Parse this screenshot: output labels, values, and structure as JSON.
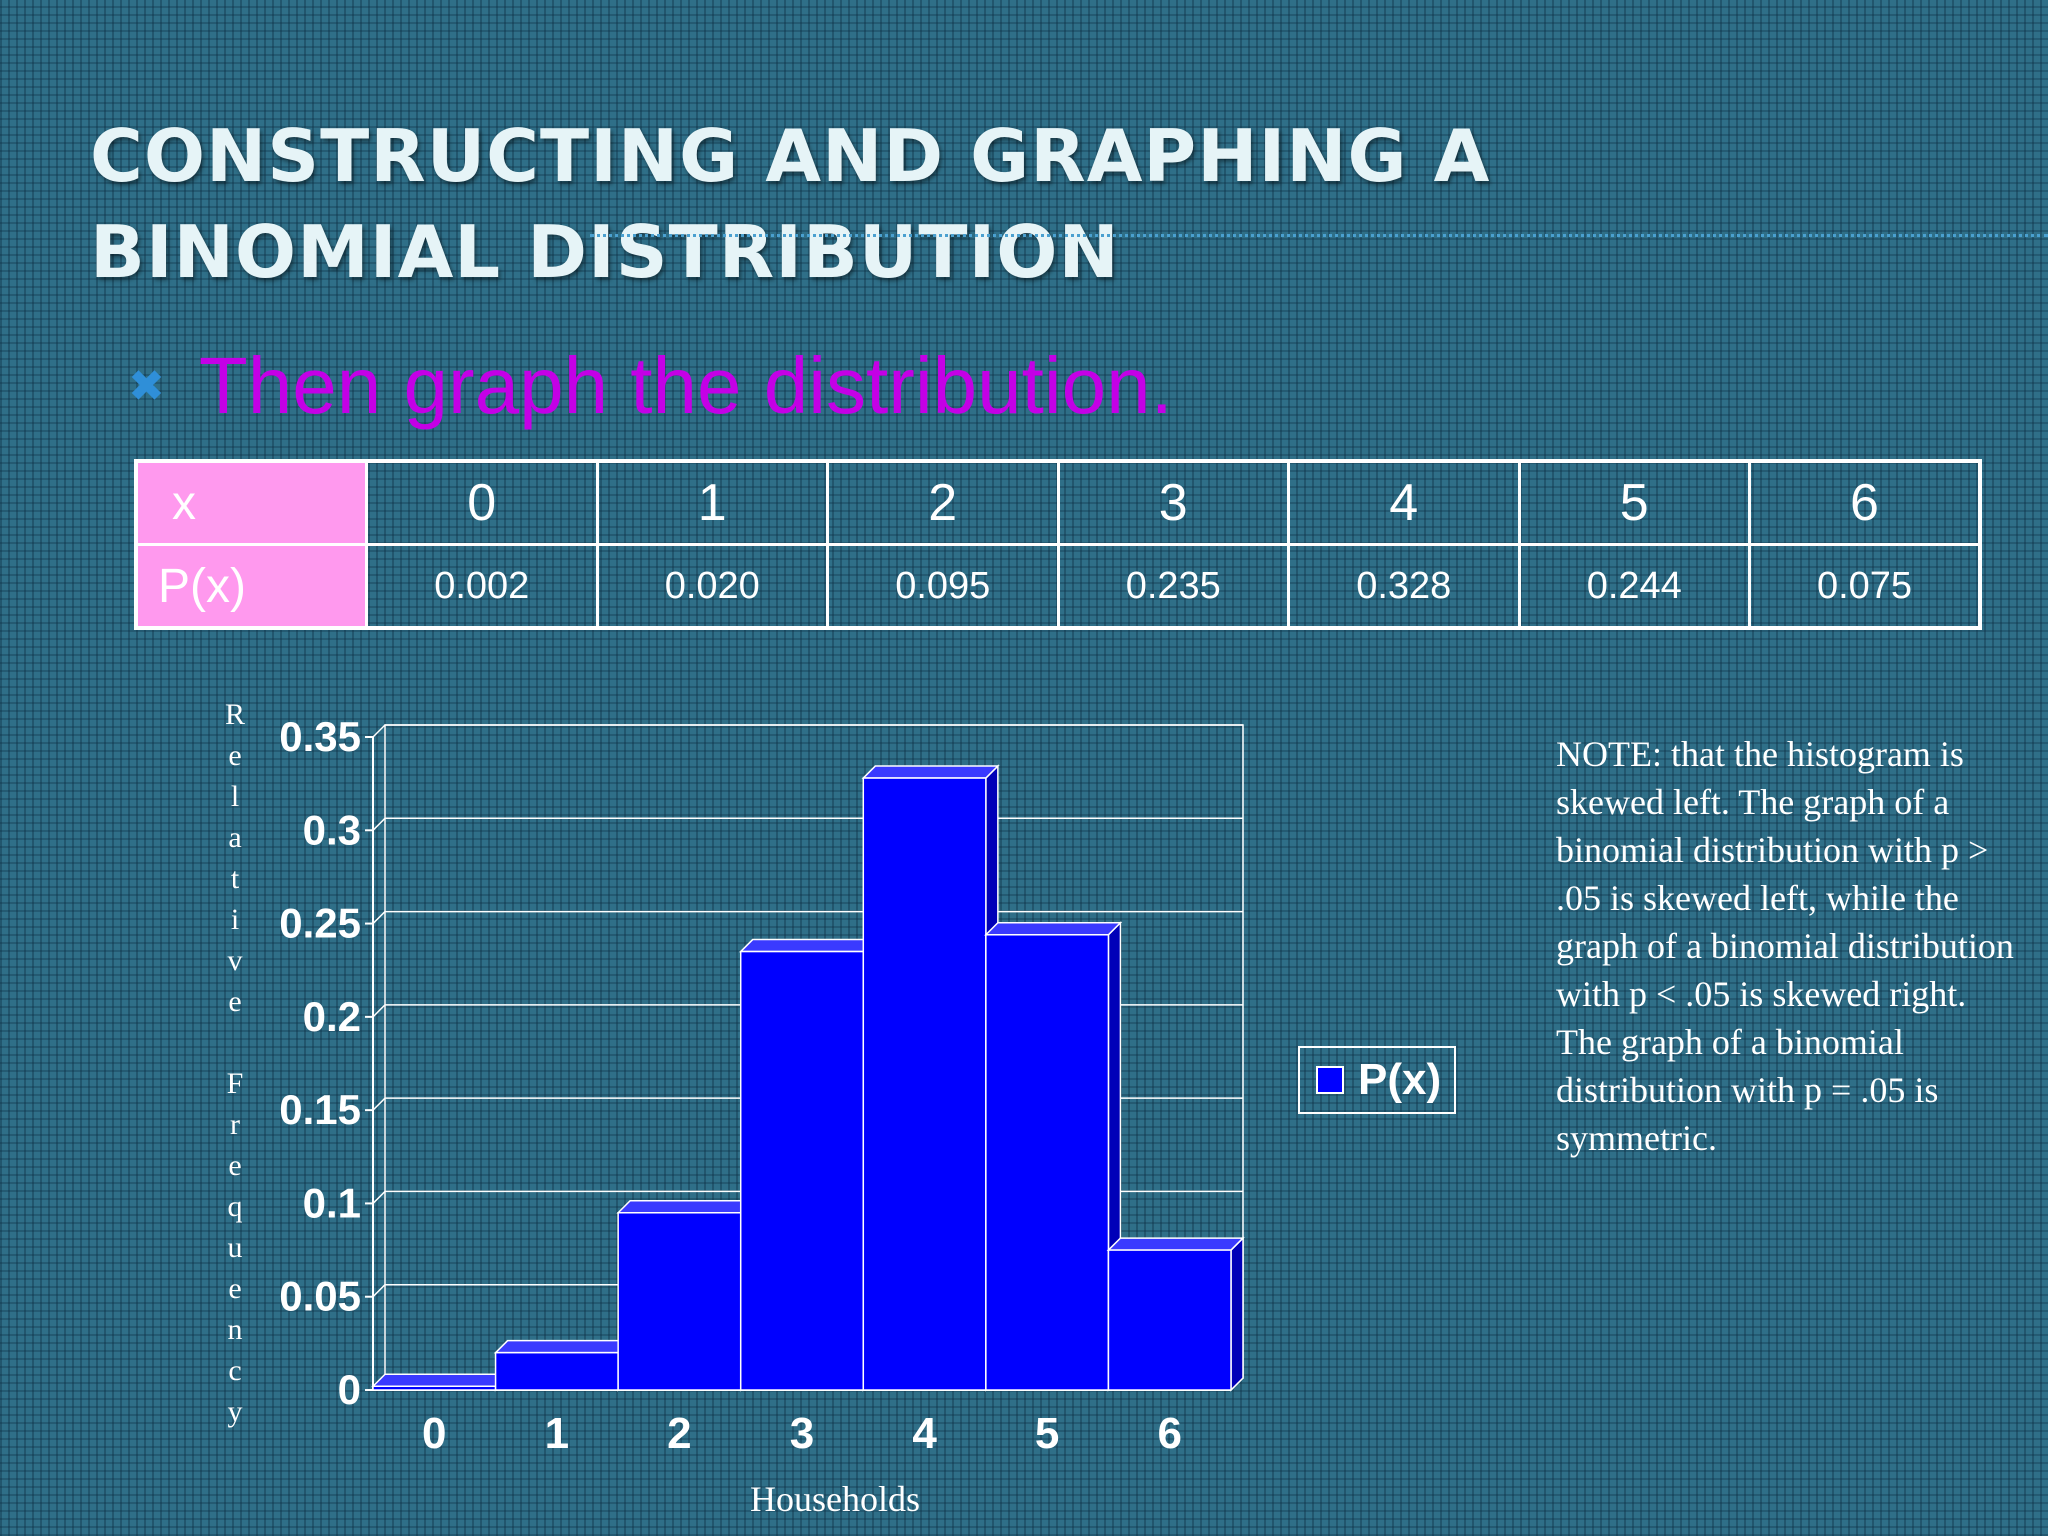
{
  "slide": {
    "title": "Constructing and Graphing a Binomial Distribution",
    "bullet_icon": "x-mark-icon",
    "bullet_text": "Then graph the distribution.",
    "note": "NOTE:  that the histogram is skewed left.  The graph of a binomial distribution with p > .05 is skewed left, while the graph of a binomial distribution with p < .05 is skewed right.  The graph of a binomial distribution with p = .05 is symmetric.",
    "colors": {
      "background": "#2f6f88",
      "title": "#e6f4f7",
      "bullet_text": "#c400e6",
      "header_cells": "#ff99ee",
      "bars": "#0000ff"
    }
  },
  "table": {
    "row_label_x": "x",
    "row_label_p": "P(x)",
    "x_values": [
      "0",
      "1",
      "2",
      "3",
      "4",
      "5",
      "6"
    ],
    "p_values": [
      "0.002",
      "0.020",
      "0.095",
      "0.235",
      "0.328",
      "0.244",
      "0.075"
    ]
  },
  "chart_data": {
    "type": "bar",
    "categories": [
      "0",
      "1",
      "2",
      "3",
      "4",
      "5",
      "6"
    ],
    "series": [
      {
        "name": "P(x)",
        "values": [
          0.002,
          0.02,
          0.095,
          0.235,
          0.328,
          0.244,
          0.075
        ]
      }
    ],
    "ylim": [
      0,
      0.35
    ],
    "yticks": [
      "0",
      "0.05",
      "0.1",
      "0.15",
      "0.2",
      "0.25",
      "0.3",
      "0.35"
    ],
    "xlabel": "Households",
    "ylabel": "Relative Frequency",
    "legend": "right",
    "grid": true,
    "bar_color": "#0000ff"
  }
}
